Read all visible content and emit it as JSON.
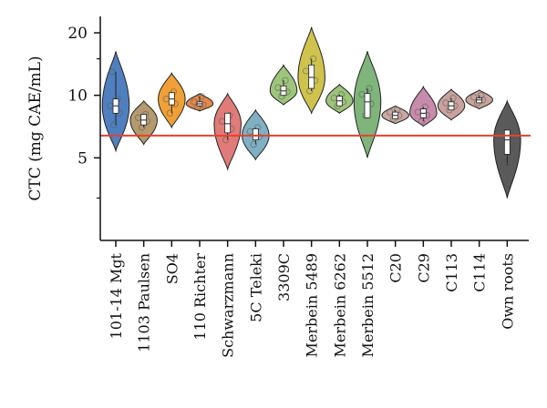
{
  "chart_data": {
    "type": "violin",
    "title": "",
    "ylabel": "CTC (mg CAE/mL)",
    "xlabel": "",
    "ylim": [
      2,
      24
    ],
    "yticks": [
      5,
      10,
      20
    ],
    "ytick_labels": [
      "5",
      "10",
      "20"
    ],
    "y_scale": "log",
    "reference_line": {
      "value": 6.4,
      "color": "#e8412c"
    },
    "categories": [
      "101-14 Mgt",
      "1103 Paulsen",
      "SO4",
      "110 Richter",
      "Schwarzmann",
      "5C Teleki",
      "3309C",
      "Merbein 5489",
      "Merbein 6262",
      "Merbein 5512",
      "C20",
      "C29",
      "C113",
      "C114",
      "Own roots"
    ],
    "colors": [
      "#4f7fbf",
      "#b49a6e",
      "#f0a036",
      "#e3894a",
      "#e07b79",
      "#7fb0c4",
      "#9ec57b",
      "#cfc34e",
      "#9cc47a",
      "#7fb47a",
      "#c9a9a2",
      "#c98bab",
      "#c9a29d",
      "#c9a49a",
      "#5a5a5a"
    ],
    "series": [
      {
        "name": "101-14 Mgt",
        "min": 5.4,
        "max": 16.3,
        "q1": 8.2,
        "q3": 9.6,
        "median": 8.9,
        "points": [
          7.2,
          8.2,
          8.9,
          9.6,
          13.0
        ]
      },
      {
        "name": "1103 Paulsen",
        "min": 5.8,
        "max": 9.4,
        "q1": 7.2,
        "q3": 8.1,
        "median": 7.6,
        "points": [
          7.0,
          7.5,
          7.8,
          8.1
        ]
      },
      {
        "name": "SO4",
        "min": 7.0,
        "max": 12.8,
        "q1": 9.0,
        "q3": 10.3,
        "median": 9.6,
        "points": [
          8.2,
          9.1,
          9.6,
          10.4
        ]
      },
      {
        "name": "110 Richter",
        "min": 8.4,
        "max": 10.2,
        "q1": 8.9,
        "q3": 9.3,
        "median": 9.1,
        "points": [
          8.8,
          9.0,
          9.3,
          9.9
        ]
      },
      {
        "name": "Schwarzmann",
        "min": 4.4,
        "max": 10.2,
        "q1": 6.6,
        "q3": 8.2,
        "median": 7.3,
        "points": [
          6.1,
          6.9,
          7.5,
          8.0
        ]
      },
      {
        "name": "5C Teleki",
        "min": 4.9,
        "max": 8.5,
        "q1": 6.1,
        "q3": 6.9,
        "median": 6.4,
        "points": [
          5.8,
          6.3,
          6.7,
          7.0
        ]
      },
      {
        "name": "3309C",
        "min": 9.0,
        "max": 14.0,
        "q1": 10.0,
        "q3": 11.1,
        "median": 10.5,
        "points": [
          9.9,
          10.4,
          10.9,
          11.8
        ]
      },
      {
        "name": "Merbein 5489",
        "min": 8.2,
        "max": 21.3,
        "q1": 10.8,
        "q3": 14.0,
        "median": 12.2,
        "points": [
          10.5,
          11.8,
          13.1,
          15.0
        ]
      },
      {
        "name": "Merbein 6262",
        "min": 8.2,
        "max": 11.3,
        "q1": 8.9,
        "q3": 9.9,
        "median": 9.4,
        "points": [
          8.9,
          9.3,
          9.7,
          10.1
        ]
      },
      {
        "name": "Merbein 5512",
        "min": 5.0,
        "max": 16.3,
        "q1": 7.8,
        "q3": 10.2,
        "median": 9.3,
        "points": [
          8.0,
          9.1,
          10.1,
          10.8
        ]
      },
      {
        "name": "C20",
        "min": 7.3,
        "max": 8.9,
        "q1": 7.7,
        "q3": 8.3,
        "median": 8.0,
        "points": [
          7.7,
          8.0,
          8.3,
          8.5
        ]
      },
      {
        "name": "C29",
        "min": 7.1,
        "max": 11.0,
        "q1": 7.8,
        "q3": 8.6,
        "median": 8.2,
        "points": [
          7.5,
          8.0,
          8.3,
          8.8
        ]
      },
      {
        "name": "C113",
        "min": 7.6,
        "max": 10.7,
        "q1": 8.5,
        "q3": 9.3,
        "median": 8.9,
        "points": [
          8.5,
          8.9,
          9.2,
          9.7
        ]
      },
      {
        "name": "C114",
        "min": 8.6,
        "max": 10.6,
        "q1": 9.2,
        "q3": 9.7,
        "median": 9.5,
        "points": [
          9.2,
          9.5,
          9.8,
          10.0
        ]
      },
      {
        "name": "Own roots",
        "min": 3.2,
        "max": 9.4,
        "q1": 5.2,
        "q3": 6.8,
        "median": 6.1,
        "points": [
          4.6,
          5.6,
          6.3,
          6.8
        ]
      }
    ]
  }
}
